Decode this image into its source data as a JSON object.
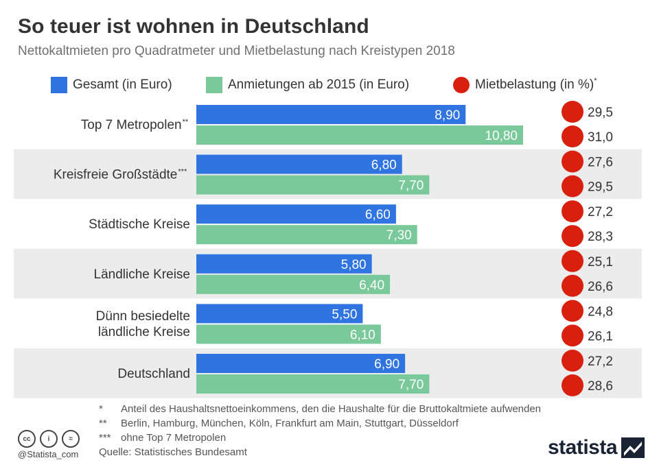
{
  "header": {
    "title": "So teuer ist wohnen in Deutschland",
    "subtitle": "Nettokaltmieten pro Quadratmeter und Mietbelastung nach Kreistypen 2018"
  },
  "legend": {
    "gesamt": "Gesamt (in Euro)",
    "anmietungen": "Anmietungen ab 2015 (in Euro)",
    "mietbelastung": "Mietbelastung (in %)",
    "mietbelastung_sup": "*"
  },
  "colors": {
    "gesamt": "#2f74e0",
    "anmietungen": "#79c99a",
    "mietbelastung": "#d9200f",
    "band": "#ececec"
  },
  "chart_data": {
    "type": "bar",
    "orientation": "horizontal",
    "title": "So teuer ist wohnen in Deutschland",
    "categories": [
      {
        "lines": [
          "Top 7 Metropolen"
        ],
        "sup": "**"
      },
      {
        "lines": [
          "Kreisfreie Großstädte"
        ],
        "sup": "***"
      },
      {
        "lines": [
          "Städtische Kreise"
        ],
        "sup": ""
      },
      {
        "lines": [
          "Ländliche Kreise"
        ],
        "sup": ""
      },
      {
        "lines": [
          "Dünn besiedelte",
          "ländliche Kreise"
        ],
        "sup": ""
      },
      {
        "lines": [
          "Deutschland"
        ],
        "sup": ""
      }
    ],
    "series": [
      {
        "name": "Gesamt (in Euro)",
        "key": "gesamt",
        "values": [
          8.9,
          6.8,
          6.6,
          5.8,
          5.5,
          6.9
        ],
        "labels": [
          "8,90",
          "6,80",
          "6,60",
          "5,80",
          "5,50",
          "6,90"
        ]
      },
      {
        "name": "Anmietungen ab 2015 (in Euro)",
        "key": "anmietungen",
        "values": [
          10.8,
          7.7,
          7.3,
          6.4,
          6.1,
          7.7
        ],
        "labels": [
          "10,80",
          "7,70",
          "7,30",
          "6,40",
          "6,10",
          "7,70"
        ]
      }
    ],
    "dots": [
      {
        "name": "Mietbelastung (in %)",
        "series": "gesamt",
        "values": [
          29.5,
          27.6,
          27.2,
          25.1,
          24.8,
          27.2
        ],
        "labels": [
          "29,5",
          "27,6",
          "27,2",
          "25,1",
          "24,8",
          "27,2"
        ]
      },
      {
        "name": "Mietbelastung (in %)",
        "series": "anmietungen",
        "values": [
          31.0,
          29.5,
          28.3,
          26.6,
          26.1,
          28.6
        ],
        "labels": [
          "31,0",
          "29,5",
          "28,3",
          "26,6",
          "26,1",
          "28,6"
        ]
      }
    ],
    "xlim": [
      0,
      10.8
    ],
    "unit": "Euro pro Quadratmeter"
  },
  "footnotes": [
    {
      "mark": "*",
      "text": "Anteil des Haushaltsnettoeinkommens, den die Haushalte für die Bruttokaltmiete aufwenden"
    },
    {
      "mark": "**",
      "text": "Berlin, Hamburg, München, Köln, Frankfurt am Main, Stuttgart, Düsseldorf"
    },
    {
      "mark": "***",
      "text": "ohne Top 7 Metropolen"
    }
  ],
  "source": "Quelle: Statistisches Bundesamt",
  "license": {
    "icons": [
      "cc-icon",
      "by-icon",
      "nd-icon"
    ],
    "cc": "cc",
    "by": "i",
    "nd": "="
  },
  "handle": "@Statista_com",
  "brand": "statista"
}
